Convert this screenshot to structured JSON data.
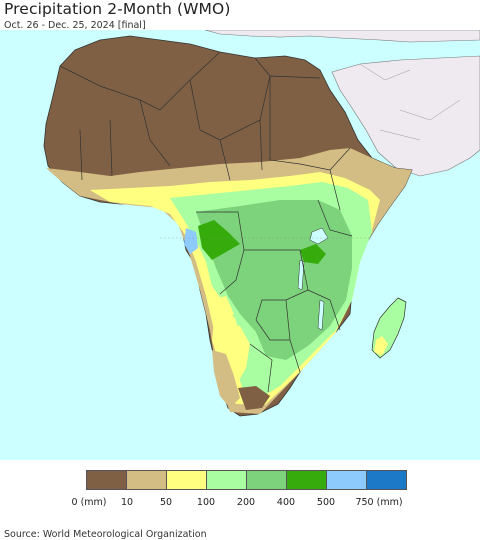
{
  "header": {
    "title": "Precipitation 2-Month (WMO)",
    "subtitle": "Oct. 26 - Dec. 25, 2024 [final]"
  },
  "map": {
    "region": "Africa",
    "ocean_color": "#ccffff",
    "other_land_color": "#eeeaf0"
  },
  "legend": {
    "colors": [
      "#7f6044",
      "#d3bd84",
      "#ffff80",
      "#a8fea0",
      "#7dd37c",
      "#36ab0c",
      "#8dcbfd",
      "#1c79c7"
    ],
    "labels": [
      "0 (mm)",
      "10",
      "50",
      "100",
      "200",
      "400",
      "500",
      "750 (mm)"
    ]
  },
  "footer": {
    "source": "Source: World Meteorological Organization"
  }
}
